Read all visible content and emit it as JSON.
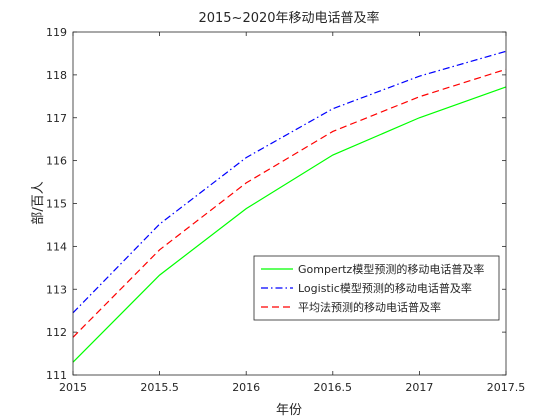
{
  "chart_data": {
    "type": "line",
    "title": "2015~2020年移动电话普及率",
    "xlabel": "年份",
    "ylabel": "部/百人",
    "xlim": [
      2015,
      2017.5
    ],
    "ylim": [
      111,
      119
    ],
    "xticks": [
      "2015",
      "2015.5",
      "2016",
      "2016.5",
      "2017",
      "2017.5"
    ],
    "yticks": [
      "111",
      "112",
      "113",
      "114",
      "115",
      "116",
      "117",
      "118",
      "119"
    ],
    "grid": false,
    "legend_position": "lower-right",
    "x": [
      2015,
      2015.5,
      2016,
      2016.5,
      2017,
      2017.5
    ],
    "series": [
      {
        "name": "Gompertz模型预测的移动电话普及率",
        "values": [
          111.3,
          113.33,
          114.88,
          116.13,
          117.0,
          117.72
        ],
        "color": "#00ff00",
        "style": "solid"
      },
      {
        "name": "Logistic模型预测的移动电话普及率",
        "values": [
          112.45,
          114.52,
          116.07,
          117.21,
          117.97,
          118.55
        ],
        "color": "#0000ff",
        "style": "dashdot"
      },
      {
        "name": "平均法预测的移动电话普及率",
        "values": [
          111.88,
          113.92,
          115.48,
          116.68,
          117.49,
          118.13
        ],
        "color": "#ff0000",
        "style": "dashed"
      }
    ]
  }
}
